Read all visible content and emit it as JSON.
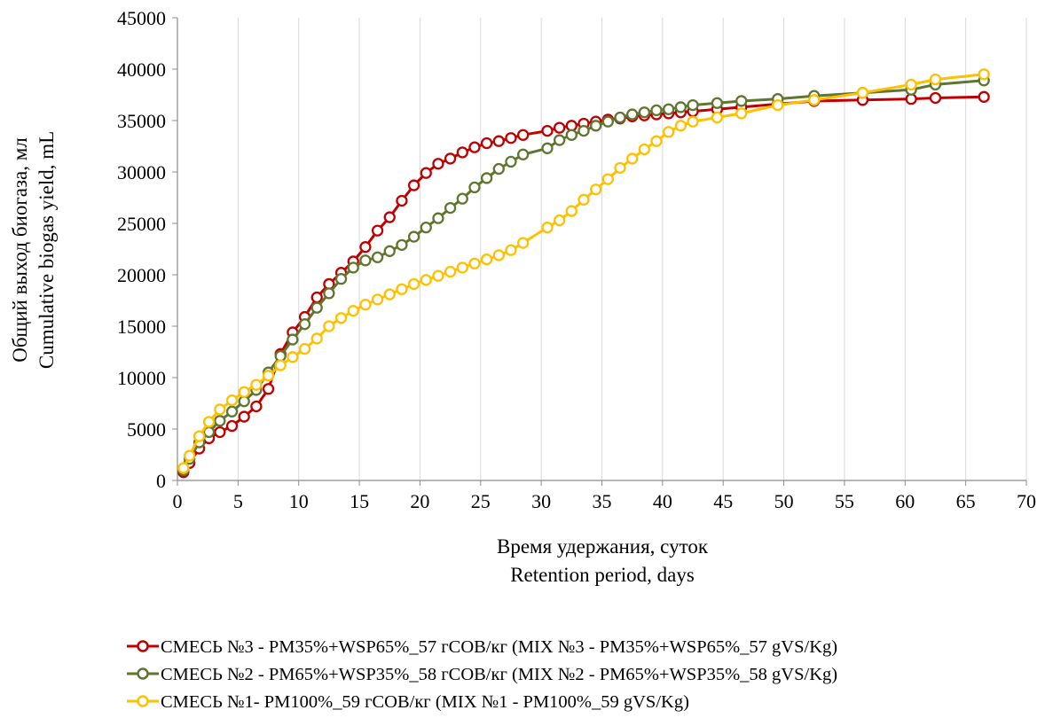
{
  "chart_data": {
    "type": "line",
    "title": "",
    "xlabel": [
      "Время удержания, суток",
      "Retention period, days"
    ],
    "ylabel": [
      "Общий выход биогаза, мл",
      "Cumulative biogas yield, mL"
    ],
    "xlim": [
      0,
      70
    ],
    "ylim": [
      0,
      45000
    ],
    "xticks": [
      0,
      5,
      10,
      15,
      20,
      25,
      30,
      35,
      40,
      45,
      50,
      55,
      60,
      65,
      70
    ],
    "yticks": [
      0,
      5000,
      10000,
      15000,
      20000,
      25000,
      30000,
      35000,
      40000,
      45000
    ],
    "grid": "vertical",
    "legend_position": "bottom",
    "series": [
      {
        "name": "СМЕСЬ №3 - РМ35%+WSP65%_57 гСОВ/кг (MIX  №3 - PM35%+WSP65%_57 gVS/Kg)",
        "color": "#c00000",
        "x": [
          0.5,
          1.0,
          1.8,
          2.6,
          3.5,
          4.5,
          5.5,
          6.5,
          7.5,
          8.5,
          9.5,
          10.5,
          11.5,
          12.5,
          13.5,
          14.5,
          15.5,
          16.5,
          17.5,
          18.5,
          19.5,
          20.5,
          21.5,
          22.5,
          23.5,
          24.5,
          25.5,
          26.5,
          27.5,
          28.5,
          30.5,
          31.5,
          32.5,
          33.5,
          34.5,
          35.5,
          36.5,
          37.5,
          38.5,
          39.5,
          40.5,
          41.5,
          42.5,
          44.5,
          46.5,
          49.5,
          52.5,
          56.5,
          60.5,
          62.5,
          66.5
        ],
        "values": [
          800,
          1700,
          3100,
          4100,
          4700,
          5300,
          6200,
          7200,
          8900,
          12300,
          14400,
          15900,
          17800,
          19100,
          20200,
          21300,
          22700,
          24300,
          25600,
          27200,
          28700,
          29900,
          30800,
          31300,
          31900,
          32400,
          32800,
          33000,
          33300,
          33600,
          34000,
          34300,
          34500,
          34700,
          34900,
          35100,
          35200,
          35400,
          35500,
          35600,
          35700,
          35800,
          35900,
          36100,
          36300,
          36600,
          36900,
          37000,
          37100,
          37200,
          37300
        ]
      },
      {
        "name": "СМЕСЬ №2 - РМ65%+WSP35%_58 гСОВ/кг (MIX  №2 - PM65%+WSP35%_58 gVS/Kg)",
        "color": "#5f7530",
        "x": [
          0.5,
          1.0,
          1.8,
          2.6,
          3.5,
          4.5,
          5.5,
          6.5,
          7.5,
          8.5,
          9.5,
          10.5,
          11.5,
          12.5,
          13.5,
          14.5,
          15.5,
          16.5,
          17.5,
          18.5,
          19.5,
          20.5,
          21.5,
          22.5,
          23.5,
          24.5,
          25.5,
          26.5,
          27.5,
          28.5,
          30.5,
          31.5,
          32.5,
          33.5,
          34.5,
          35.5,
          36.5,
          37.5,
          38.5,
          39.5,
          40.5,
          41.5,
          42.5,
          44.5,
          46.5,
          49.5,
          52.5,
          56.5,
          60.5,
          62.5,
          66.5
        ],
        "values": [
          1000,
          2100,
          3700,
          4700,
          5800,
          6700,
          7700,
          8800,
          10500,
          12100,
          13700,
          15200,
          16800,
          18200,
          19600,
          20700,
          21400,
          21700,
          22300,
          22900,
          23700,
          24600,
          25500,
          26500,
          27400,
          28500,
          29400,
          30300,
          31000,
          31700,
          32300,
          33100,
          33600,
          34000,
          34500,
          34900,
          35300,
          35600,
          35800,
          36000,
          36100,
          36300,
          36500,
          36700,
          36900,
          37100,
          37400,
          37700,
          38000,
          38500,
          38900
        ]
      },
      {
        "name": "СМЕСЬ №1- РМ100%_59 гСОВ/кг (MIX  №1 - PM100%_59 gVS/Kg)",
        "color": "#ffc000",
        "x": [
          0.5,
          1.0,
          1.8,
          2.6,
          3.5,
          4.5,
          5.5,
          6.5,
          7.5,
          8.5,
          9.5,
          10.5,
          11.5,
          12.5,
          13.5,
          14.5,
          15.5,
          16.5,
          17.5,
          18.5,
          19.5,
          20.5,
          21.5,
          22.5,
          23.5,
          24.5,
          25.5,
          26.5,
          27.5,
          28.5,
          30.5,
          31.5,
          32.5,
          33.5,
          34.5,
          35.5,
          36.5,
          37.5,
          38.5,
          39.5,
          40.5,
          41.5,
          42.5,
          44.5,
          46.5,
          49.5,
          52.5,
          56.5,
          60.5,
          62.5,
          66.5
        ],
        "values": [
          1200,
          2400,
          4300,
          5700,
          6900,
          7800,
          8600,
          9300,
          10200,
          11200,
          12000,
          12800,
          13800,
          15000,
          15800,
          16500,
          17100,
          17600,
          18100,
          18600,
          19100,
          19500,
          19900,
          20300,
          20700,
          21100,
          21500,
          21900,
          22400,
          23100,
          24600,
          25300,
          26200,
          27300,
          28300,
          29300,
          30400,
          31300,
          32200,
          33000,
          33900,
          34500,
          34900,
          35300,
          35700,
          36500,
          37000,
          37700,
          38500,
          39000,
          39500
        ]
      }
    ]
  }
}
